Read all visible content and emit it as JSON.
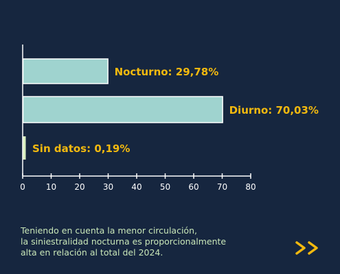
{
  "chart_data": {
    "type": "bar",
    "orientation": "horizontal",
    "categories": [
      "Nocturno",
      "Diurno",
      "Sin datos"
    ],
    "values": [
      29.78,
      70.03,
      0.19
    ],
    "data_labels": [
      "Nocturno: 29,78%",
      "Diurno: 70,03%",
      "Sin datos: 0,19%"
    ],
    "xlim": [
      0,
      80
    ],
    "xticks": [
      "0",
      "10",
      "20",
      "30",
      "40",
      "50",
      "60",
      "70",
      "80"
    ],
    "title": "",
    "xlabel": "",
    "ylabel": "",
    "grid": false,
    "colors": {
      "bar_fill": "#9fd3cf",
      "bar_stroke": "#ffffff",
      "small_bar_fill": "#d8efc0",
      "label": "#f2b90f",
      "axis": "#ffffff",
      "tick_label": "#ffffff"
    }
  },
  "caption": {
    "lines": [
      "Teniendo en cuenta la menor circulación,",
      "la siniestralidad nocturna es proporcionalmente",
      "alta en relación al total del 2024."
    ]
  },
  "next_icon": {
    "name": "double-chevron-right-icon",
    "color": "#f2b90f"
  },
  "background": "#16263f"
}
